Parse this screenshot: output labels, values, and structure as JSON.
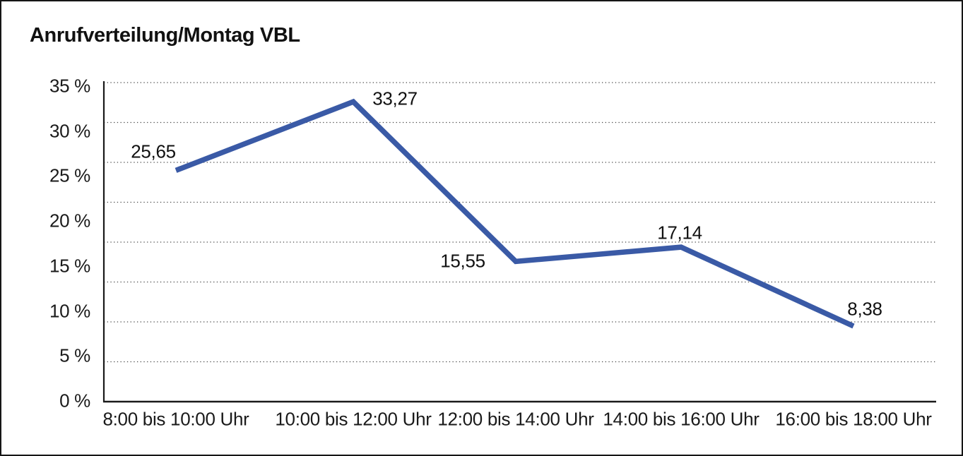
{
  "title": "Anrufverteilung/Montag VBL",
  "chart_data": {
    "type": "line",
    "title": "Anrufverteilung/Montag VBL",
    "categories": [
      "8:00 bis 10:00 Uhr",
      "10:00 bis 12:00 Uhr",
      "12:00 bis 14:00 Uhr",
      "14:00 bis 16:00 Uhr",
      "16:00 bis 18:00 Uhr"
    ],
    "values": [
      25.65,
      33.27,
      15.55,
      17.14,
      8.38
    ],
    "data_labels": [
      "25,65",
      "33,27",
      "15,55",
      "17,14",
      "8,38"
    ],
    "y_tick_labels": [
      "35 %",
      "30 %",
      "25 %",
      "20 %",
      "15 %",
      "10 %",
      "5 %",
      "0 %"
    ],
    "ylim": [
      0,
      35
    ],
    "xlabel": "",
    "ylabel": "",
    "legend": "none",
    "grid": "horizontal-dotted",
    "colors": {
      "line": "#3A5AA6",
      "axis": "#1a1a1a",
      "gridline": "#474747",
      "text": "#1a1a1a"
    }
  }
}
